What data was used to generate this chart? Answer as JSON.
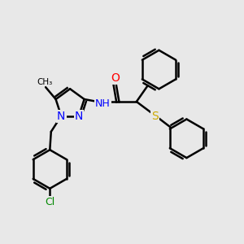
{
  "bg_color": "#e8e8e8",
  "bond_color": "#000000",
  "bond_width": 1.8,
  "atom_colors": {
    "N": "#0000ff",
    "O": "#ff0000",
    "S": "#ccaa00",
    "Cl": "#008800",
    "C": "#000000",
    "H": "#000000"
  },
  "font_size": 9,
  "fig_size": [
    3.0,
    3.0
  ],
  "dpi": 100
}
